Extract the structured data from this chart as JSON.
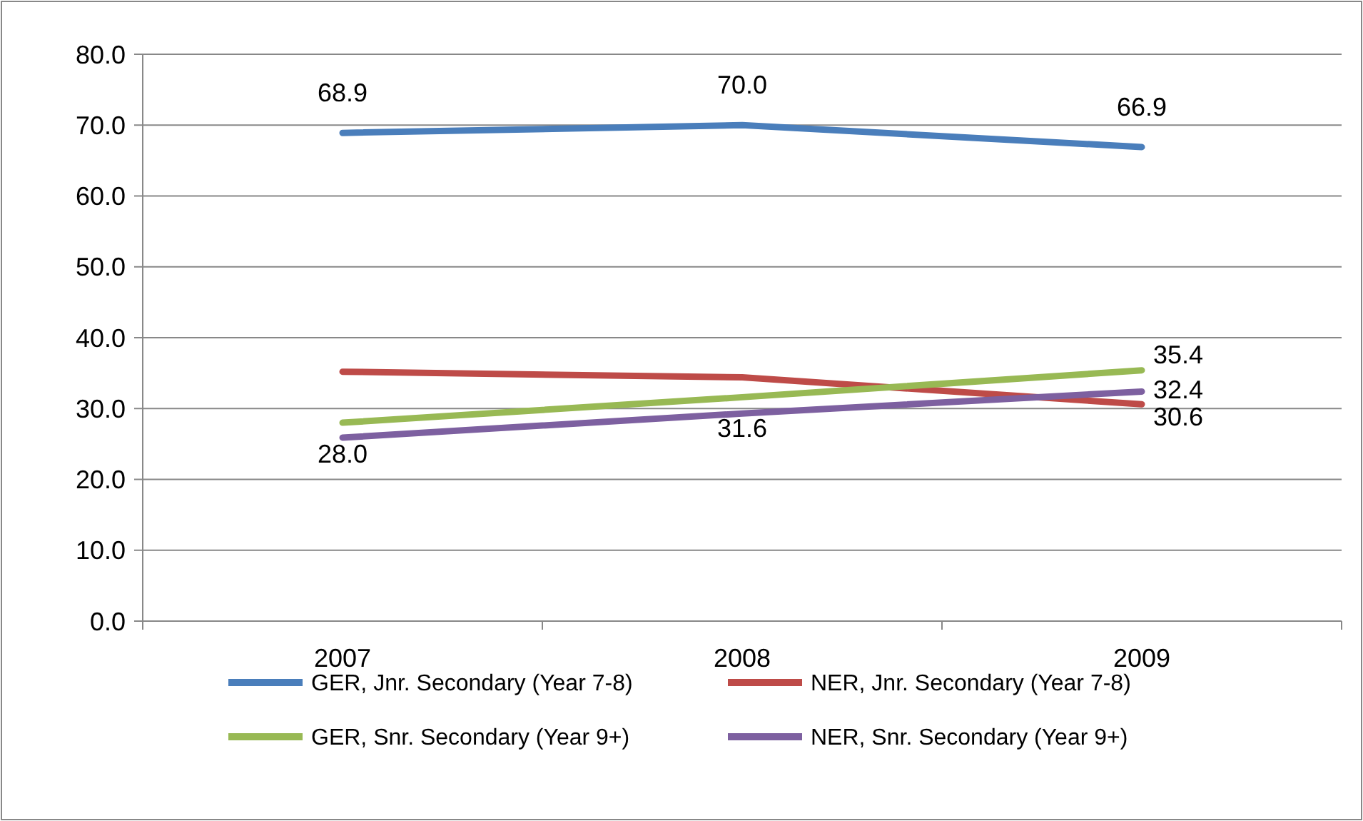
{
  "chart_data": {
    "type": "line",
    "categories": [
      "2007",
      "2008",
      "2009"
    ],
    "series": [
      {
        "name": "GER, Jnr. Secondary (Year 7-8)",
        "color": "#4a7ebb",
        "values": [
          68.9,
          70.0,
          66.9
        ],
        "value_labels": [
          "68.9",
          "70.0",
          "66.9"
        ]
      },
      {
        "name": "NER, Jnr. Secondary (Year 7-8)",
        "color": "#be4b48",
        "values": [
          35.2,
          34.4,
          30.6
        ],
        "value_labels": [
          null,
          null,
          "30.6"
        ]
      },
      {
        "name": "GER, Snr. Secondary (Year 9+)",
        "color": "#98b954",
        "values": [
          28.0,
          31.6,
          35.4
        ],
        "value_labels": [
          "28.0",
          "31.6",
          "35.4"
        ]
      },
      {
        "name": "NER, Snr. Secondary (Year 9+)",
        "color": "#7d60a0",
        "values": [
          25.9,
          29.3,
          32.4
        ],
        "value_labels": [
          null,
          null,
          "32.4"
        ]
      }
    ],
    "ylim": [
      0,
      80
    ],
    "yticks": [
      {
        "value": 0,
        "label": "0.0"
      },
      {
        "value": 10,
        "label": "10.0"
      },
      {
        "value": 20,
        "label": "20.0"
      },
      {
        "value": 30,
        "label": "30.0"
      },
      {
        "value": 40,
        "label": "40.0"
      },
      {
        "value": 50,
        "label": "50.0"
      },
      {
        "value": 60,
        "label": "60.0"
      },
      {
        "value": 70,
        "label": "70.0"
      },
      {
        "value": 80,
        "label": "80.0"
      }
    ],
    "grid": "y",
    "legend": "bottom",
    "marker": "none",
    "line_style": "solid"
  }
}
